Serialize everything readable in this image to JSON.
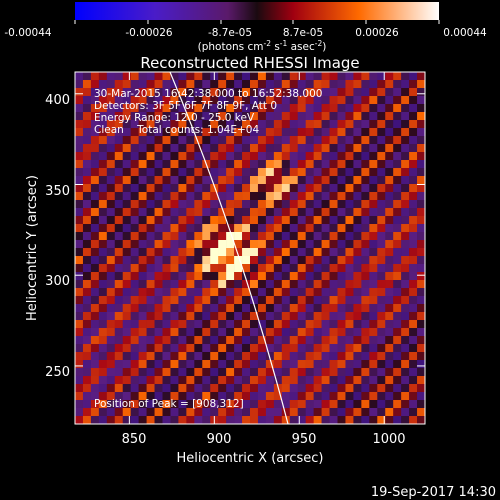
{
  "colorbar": {
    "tick_labels": [
      "-0.00044",
      "-0.00026",
      "-8.7e-05",
      "8.7e-05",
      "0.00026",
      "0.00044"
    ],
    "units_prefix": "(photons cm",
    "units_exp1": "-2",
    "units_mid": " s",
    "units_exp2": "-1",
    "units_mid2": " asec",
    "units_exp3": "-2",
    "units_suffix": ")",
    "range": [
      -0.00044,
      0.00044
    ]
  },
  "title": "Reconstructed RHESSI Image",
  "info": {
    "line1": "30-Mar-2015 16:42:38.000 to 16:52:38.000",
    "line2": "Detectors: 3F 5F 6F 7F 8F 9F, Att 0",
    "line3": "Energy Range: 12.0 - 25.0 keV",
    "line4": "Clean    Total counts: 1.04E+04",
    "peak": "Position of Peak = [908,312]"
  },
  "axes": {
    "xlabel": "Heliocentric X (arcsec)",
    "ylabel": "Heliocentric Y (arcsec)",
    "x_ticks": [
      "850",
      "900",
      "950",
      "1000"
    ],
    "x_tick_values": [
      850,
      900,
      950,
      1000
    ],
    "y_ticks": [
      "250",
      "300",
      "350",
      "400"
    ],
    "y_tick_values": [
      250,
      300,
      350,
      400
    ],
    "xlim": [
      818,
      1024
    ],
    "ylim": [
      218,
      412
    ]
  },
  "peak_position": [
    908,
    312
  ],
  "timestamp": "19-Sep-2017 14:30"
}
